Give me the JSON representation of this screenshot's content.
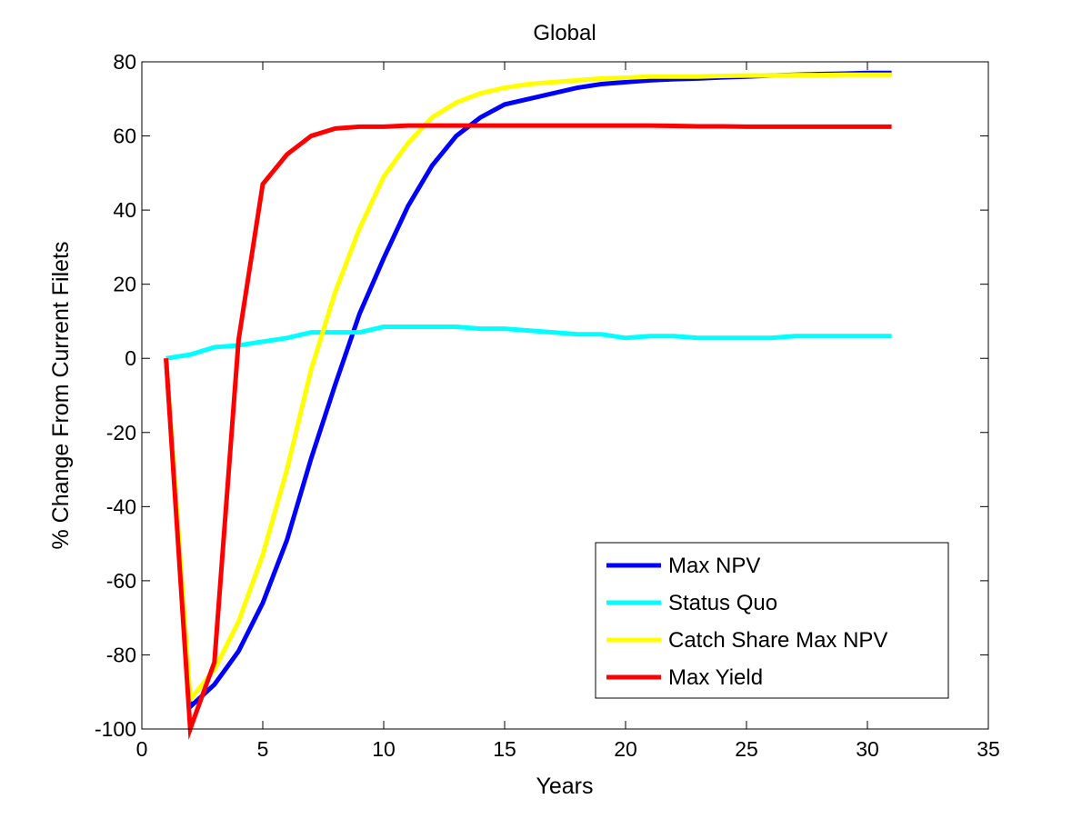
{
  "chart_data": {
    "type": "line",
    "title": "Global",
    "xlabel": "Years",
    "ylabel": "% Change From Current Filets",
    "xlim": [
      0,
      35
    ],
    "ylim": [
      -100,
      80
    ],
    "xticks": [
      0,
      5,
      10,
      15,
      20,
      25,
      30,
      35
    ],
    "yticks": [
      80,
      60,
      40,
      20,
      0,
      -20,
      -40,
      -60,
      -80,
      -100
    ],
    "grid": false,
    "legend_position": "bottom-right",
    "x": [
      1,
      2,
      3,
      4,
      5,
      6,
      7,
      8,
      9,
      10,
      11,
      12,
      13,
      14,
      15,
      16,
      17,
      18,
      19,
      20,
      21,
      22,
      23,
      24,
      25,
      26,
      27,
      28,
      29,
      30,
      31
    ],
    "series": [
      {
        "name": "Max NPV",
        "color": "#0000ff",
        "values": [
          0,
          -94,
          -88,
          -79,
          -66,
          -49,
          -27,
          -7,
          12,
          27,
          41,
          52,
          60,
          65,
          68.5,
          70,
          71.5,
          73,
          74,
          74.5,
          75,
          75.3,
          75.5,
          75.8,
          76,
          76.3,
          76.5,
          76.7,
          76.8,
          77,
          77
        ]
      },
      {
        "name": "Status Quo",
        "color": "#00ffff",
        "values": [
          0,
          1,
          3,
          3.5,
          4.5,
          5.5,
          7,
          7,
          7,
          8.5,
          8.5,
          8.5,
          8.5,
          8,
          8,
          7.5,
          7,
          6.5,
          6.5,
          5.5,
          6,
          6,
          5.5,
          5.5,
          5.5,
          5.5,
          6,
          6,
          6,
          6,
          6
        ]
      },
      {
        "name": "Catch Share Max NPV",
        "color": "#ffff00",
        "values": [
          0,
          -92,
          -84,
          -71,
          -53,
          -30,
          -3,
          18,
          35,
          49,
          58,
          65,
          69,
          71.5,
          73,
          74,
          74.5,
          75,
          75.5,
          75.7,
          76,
          76,
          76,
          76.2,
          76.3,
          76.3,
          76.4,
          76.4,
          76.5,
          76.5,
          76.5
        ]
      },
      {
        "name": "Max Yield",
        "color": "#ff0000",
        "values": [
          0,
          -100,
          -82,
          5,
          47,
          55,
          60,
          62,
          62.5,
          62.5,
          62.8,
          62.8,
          62.8,
          62.8,
          62.8,
          62.8,
          62.8,
          62.8,
          62.8,
          62.8,
          62.8,
          62.7,
          62.6,
          62.6,
          62.5,
          62.5,
          62.5,
          62.5,
          62.5,
          62.5,
          62.5
        ]
      }
    ]
  }
}
